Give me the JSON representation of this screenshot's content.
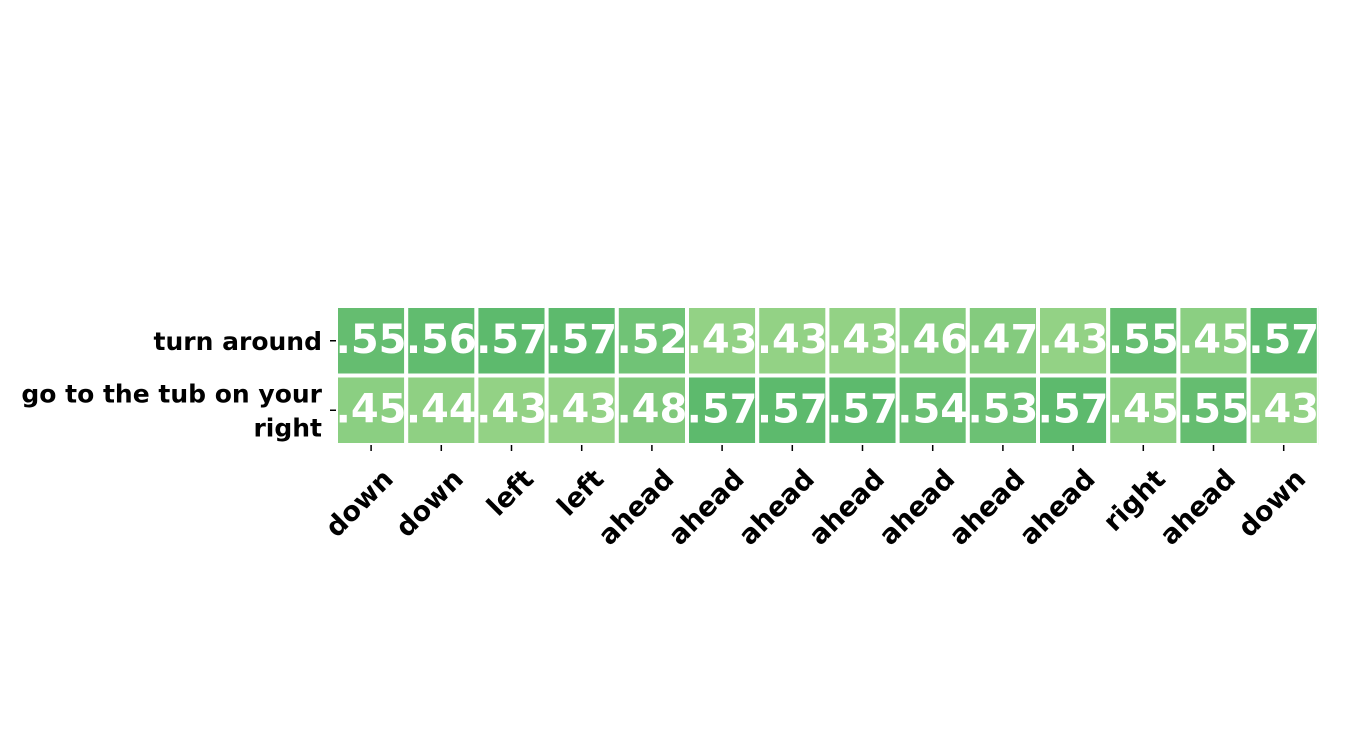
{
  "chart_data": {
    "type": "heatmap",
    "title": "",
    "xlabel": "",
    "ylabel": "",
    "rows": [
      "turn around",
      "go to the tub on your right"
    ],
    "columns": [
      "down",
      "down",
      "left",
      "left",
      "ahead",
      "ahead",
      "ahead",
      "ahead",
      "ahead",
      "ahead",
      "ahead",
      "right",
      "ahead",
      "down"
    ],
    "values": [
      [
        0.55,
        0.56,
        0.57,
        0.57,
        0.52,
        0.43,
        0.43,
        0.43,
        0.46,
        0.47,
        0.43,
        0.55,
        0.45,
        0.57
      ],
      [
        0.45,
        0.44,
        0.43,
        0.43,
        0.48,
        0.57,
        0.57,
        0.57,
        0.54,
        0.53,
        0.57,
        0.45,
        0.55,
        0.43
      ]
    ],
    "cell_labels": [
      [
        ".55",
        ".56",
        ".57",
        ".57",
        ".52",
        ".43",
        ".43",
        ".43",
        ".46",
        ".47",
        ".43",
        ".55",
        ".45",
        ".57"
      ],
      [
        ".45",
        ".44",
        ".43",
        ".43",
        ".48",
        ".57",
        ".57",
        ".57",
        ".54",
        ".53",
        ".57",
        ".45",
        ".55",
        ".43"
      ]
    ],
    "color_range": [
      0.43,
      0.57
    ],
    "colors": {
      "low": "#93d285",
      "high": "#5dba6d",
      "cell_text": "#ffffff",
      "grid": "#ffffff"
    },
    "colorbar": false,
    "grid": false,
    "legend": "none"
  }
}
